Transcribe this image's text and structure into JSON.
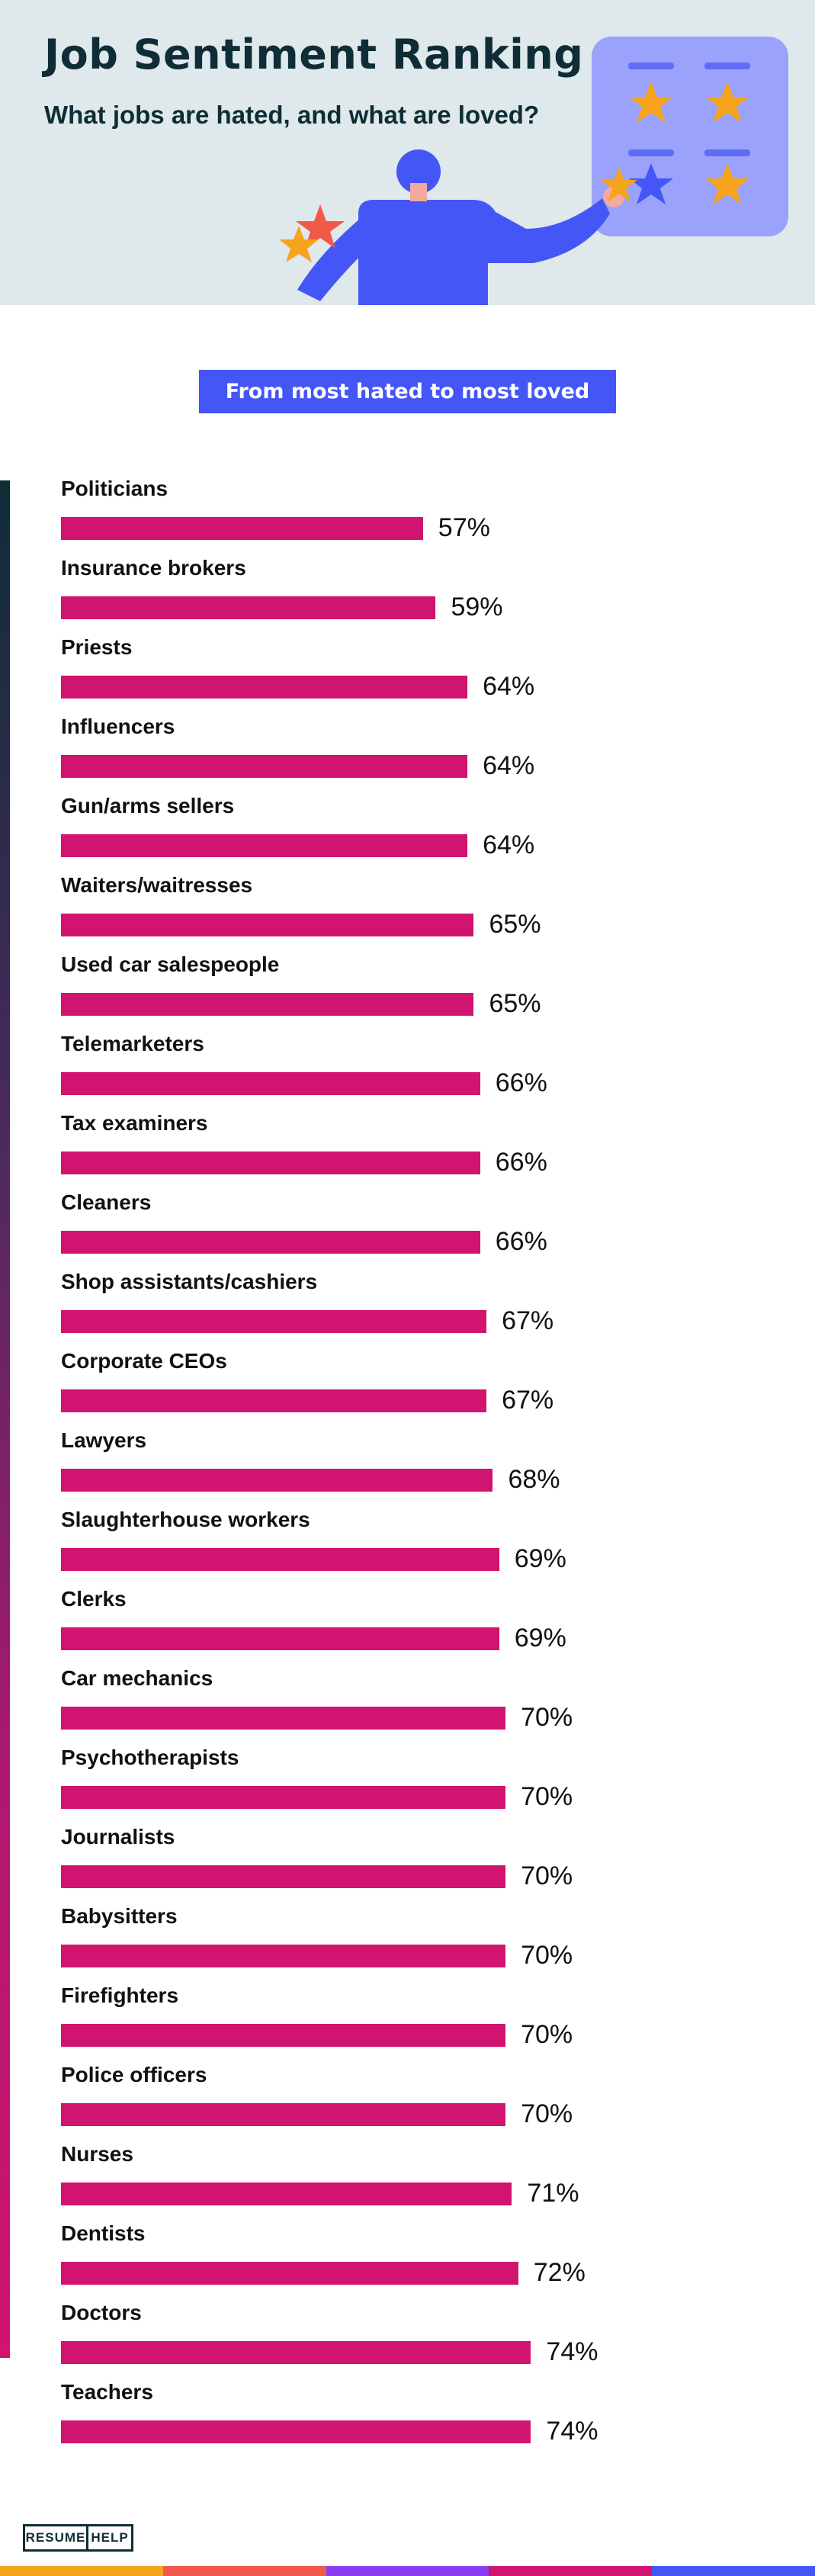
{
  "header": {
    "title": "Job Sentiment Ranking",
    "subtitle": "What jobs are hated, and what are loved?"
  },
  "pill_label": "From most hated to most loved",
  "logo": {
    "left": "RESUME",
    "right": "HELP"
  },
  "colors": {
    "bar": "#d0146f",
    "title": "#0f2d36",
    "pill": "#4456f5",
    "header_bg": "#dfe8ea",
    "footer": [
      "#f4a51c",
      "#f2594b",
      "#8a3df2",
      "#d0146f",
      "#4456f5"
    ]
  },
  "chart_data": {
    "type": "bar",
    "orientation": "horizontal",
    "title": "",
    "categories": [
      "Politicians",
      "Insurance brokers",
      "Priests",
      "Influencers",
      "Gun/arms sellers",
      "Waiters/waitresses",
      "Used car salespeople",
      "Telemarketers",
      "Tax examiners",
      "Cleaners",
      "Shop assistants/cashiers",
      "Corporate CEOs",
      "Lawyers",
      "Slaughterhouse workers",
      "Clerks",
      "Car mechanics",
      "Psychotherapists",
      "Journalists",
      "Babysitters",
      "Firefighters",
      "Police officers",
      "Nurses",
      "Dentists",
      "Doctors",
      "Teachers"
    ],
    "values": [
      57,
      59,
      64,
      64,
      64,
      65,
      65,
      66,
      66,
      66,
      67,
      67,
      68,
      69,
      69,
      70,
      70,
      70,
      70,
      70,
      70,
      71,
      72,
      74,
      74
    ],
    "value_labels": [
      "57%",
      "59%",
      "64%",
      "64%",
      "64%",
      "65%",
      "65%",
      "66%",
      "66%",
      "66%",
      "67%",
      "67%",
      "68%",
      "69%",
      "69%",
      "70%",
      "70%",
      "70%",
      "70%",
      "70%",
      "70%",
      "71%",
      "72%",
      "74%",
      "74%"
    ],
    "unit": "%",
    "grid": false,
    "legend": "none"
  }
}
